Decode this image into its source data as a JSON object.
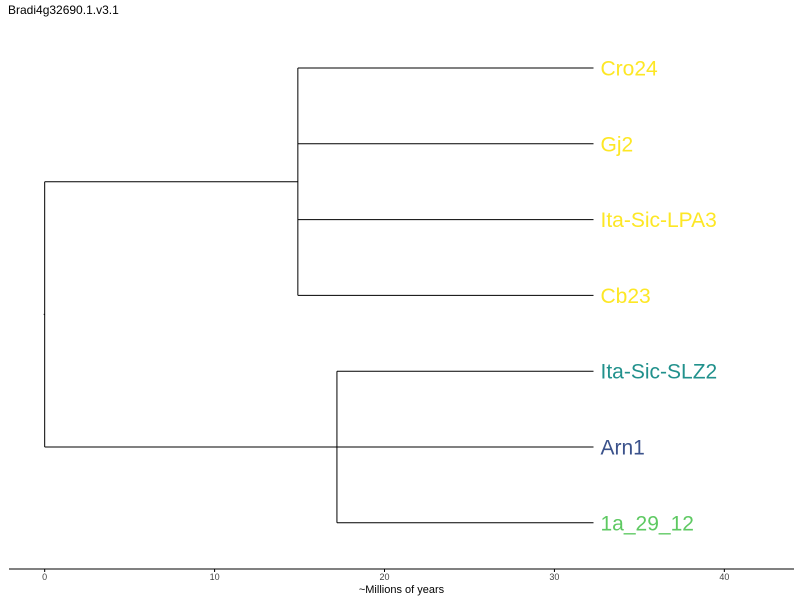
{
  "title": "Bradi4g32690.1.v3.1",
  "axis": {
    "label": "~Millions of years",
    "ticks": [
      0,
      10,
      20,
      30,
      40
    ],
    "range": [
      -2.1,
      44.1
    ]
  },
  "tree": {
    "leaves": [
      {
        "id": "cro24",
        "name": "Cro24",
        "color": "#fde725"
      },
      {
        "id": "gj2",
        "name": "Gj2",
        "color": "#fde725"
      },
      {
        "id": "lpa3",
        "name": "Ita-Sic-LPA3",
        "color": "#fde725"
      },
      {
        "id": "cb23",
        "name": "Cb23",
        "color": "#fde725"
      },
      {
        "id": "slz2",
        "name": "Ita-Sic-SLZ2",
        "color": "#21918c"
      },
      {
        "id": "arn1",
        "name": "Arn1",
        "color": "#3b528b"
      },
      {
        "id": "a29",
        "name": "1a_29_12",
        "color": "#5ec962"
      }
    ],
    "leaf_tip_x": 32.3,
    "nodes": [
      {
        "id": "root",
        "x": 0.0,
        "children": [
          "nodeA",
          "arn1"
        ]
      },
      {
        "id": "nodeA",
        "x": 14.9,
        "children": [
          "cro24",
          "gj2",
          "lpa3",
          "cb23"
        ]
      },
      {
        "id": "nodeB",
        "x": 17.2,
        "children": [
          "slz2",
          "a29"
        ]
      }
    ],
    "root_children_order": [
      "nodeA",
      "nodeB_arn1"
    ]
  }
}
